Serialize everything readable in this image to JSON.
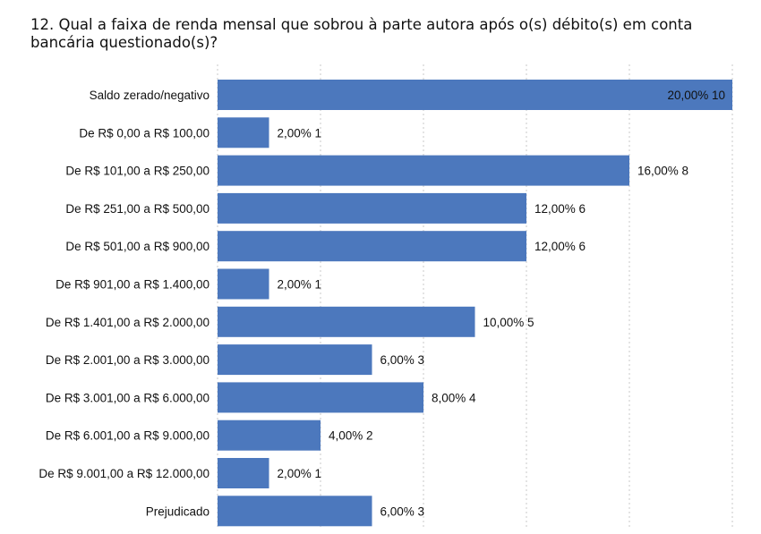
{
  "chart_data": {
    "type": "bar",
    "orientation": "horizontal",
    "title": "12. Qual a faixa de renda mensal que sobrou à parte autora após o(s) débito(s) em conta bancária questionado(s)?",
    "categories": [
      "Saldo zerado/negativo",
      "De R$ 0,00 a R$ 100,00",
      "De R$ 101,00 a R$ 250,00",
      "De R$ 251,00 a R$ 500,00",
      "De R$ 501,00 a R$ 900,00",
      "De R$ 901,00 a R$ 1.400,00",
      "De R$ 1.401,00 a R$ 2.000,00",
      "De R$ 2.001,00 a R$ 3.000,00",
      "De R$ 3.001,00 a R$ 6.000,00",
      "De R$ 6.001,00 a R$ 9.000,00",
      "De R$ 9.001,00 a R$ 12.000,00",
      "Prejudicado"
    ],
    "values": [
      10,
      1,
      8,
      6,
      6,
      1,
      5,
      3,
      4,
      2,
      1,
      3
    ],
    "data_labels": [
      "20,00% 10",
      "2,00% 1",
      "16,00% 8",
      "12,00% 6",
      "12,00% 6",
      "2,00% 1",
      "10,00% 5",
      "6,00% 3",
      "8,00% 4",
      "4,00% 2",
      "2,00% 1",
      "6,00% 3"
    ],
    "xlim": [
      0,
      10
    ],
    "grid": true,
    "bar_color": "#4c78bd"
  }
}
